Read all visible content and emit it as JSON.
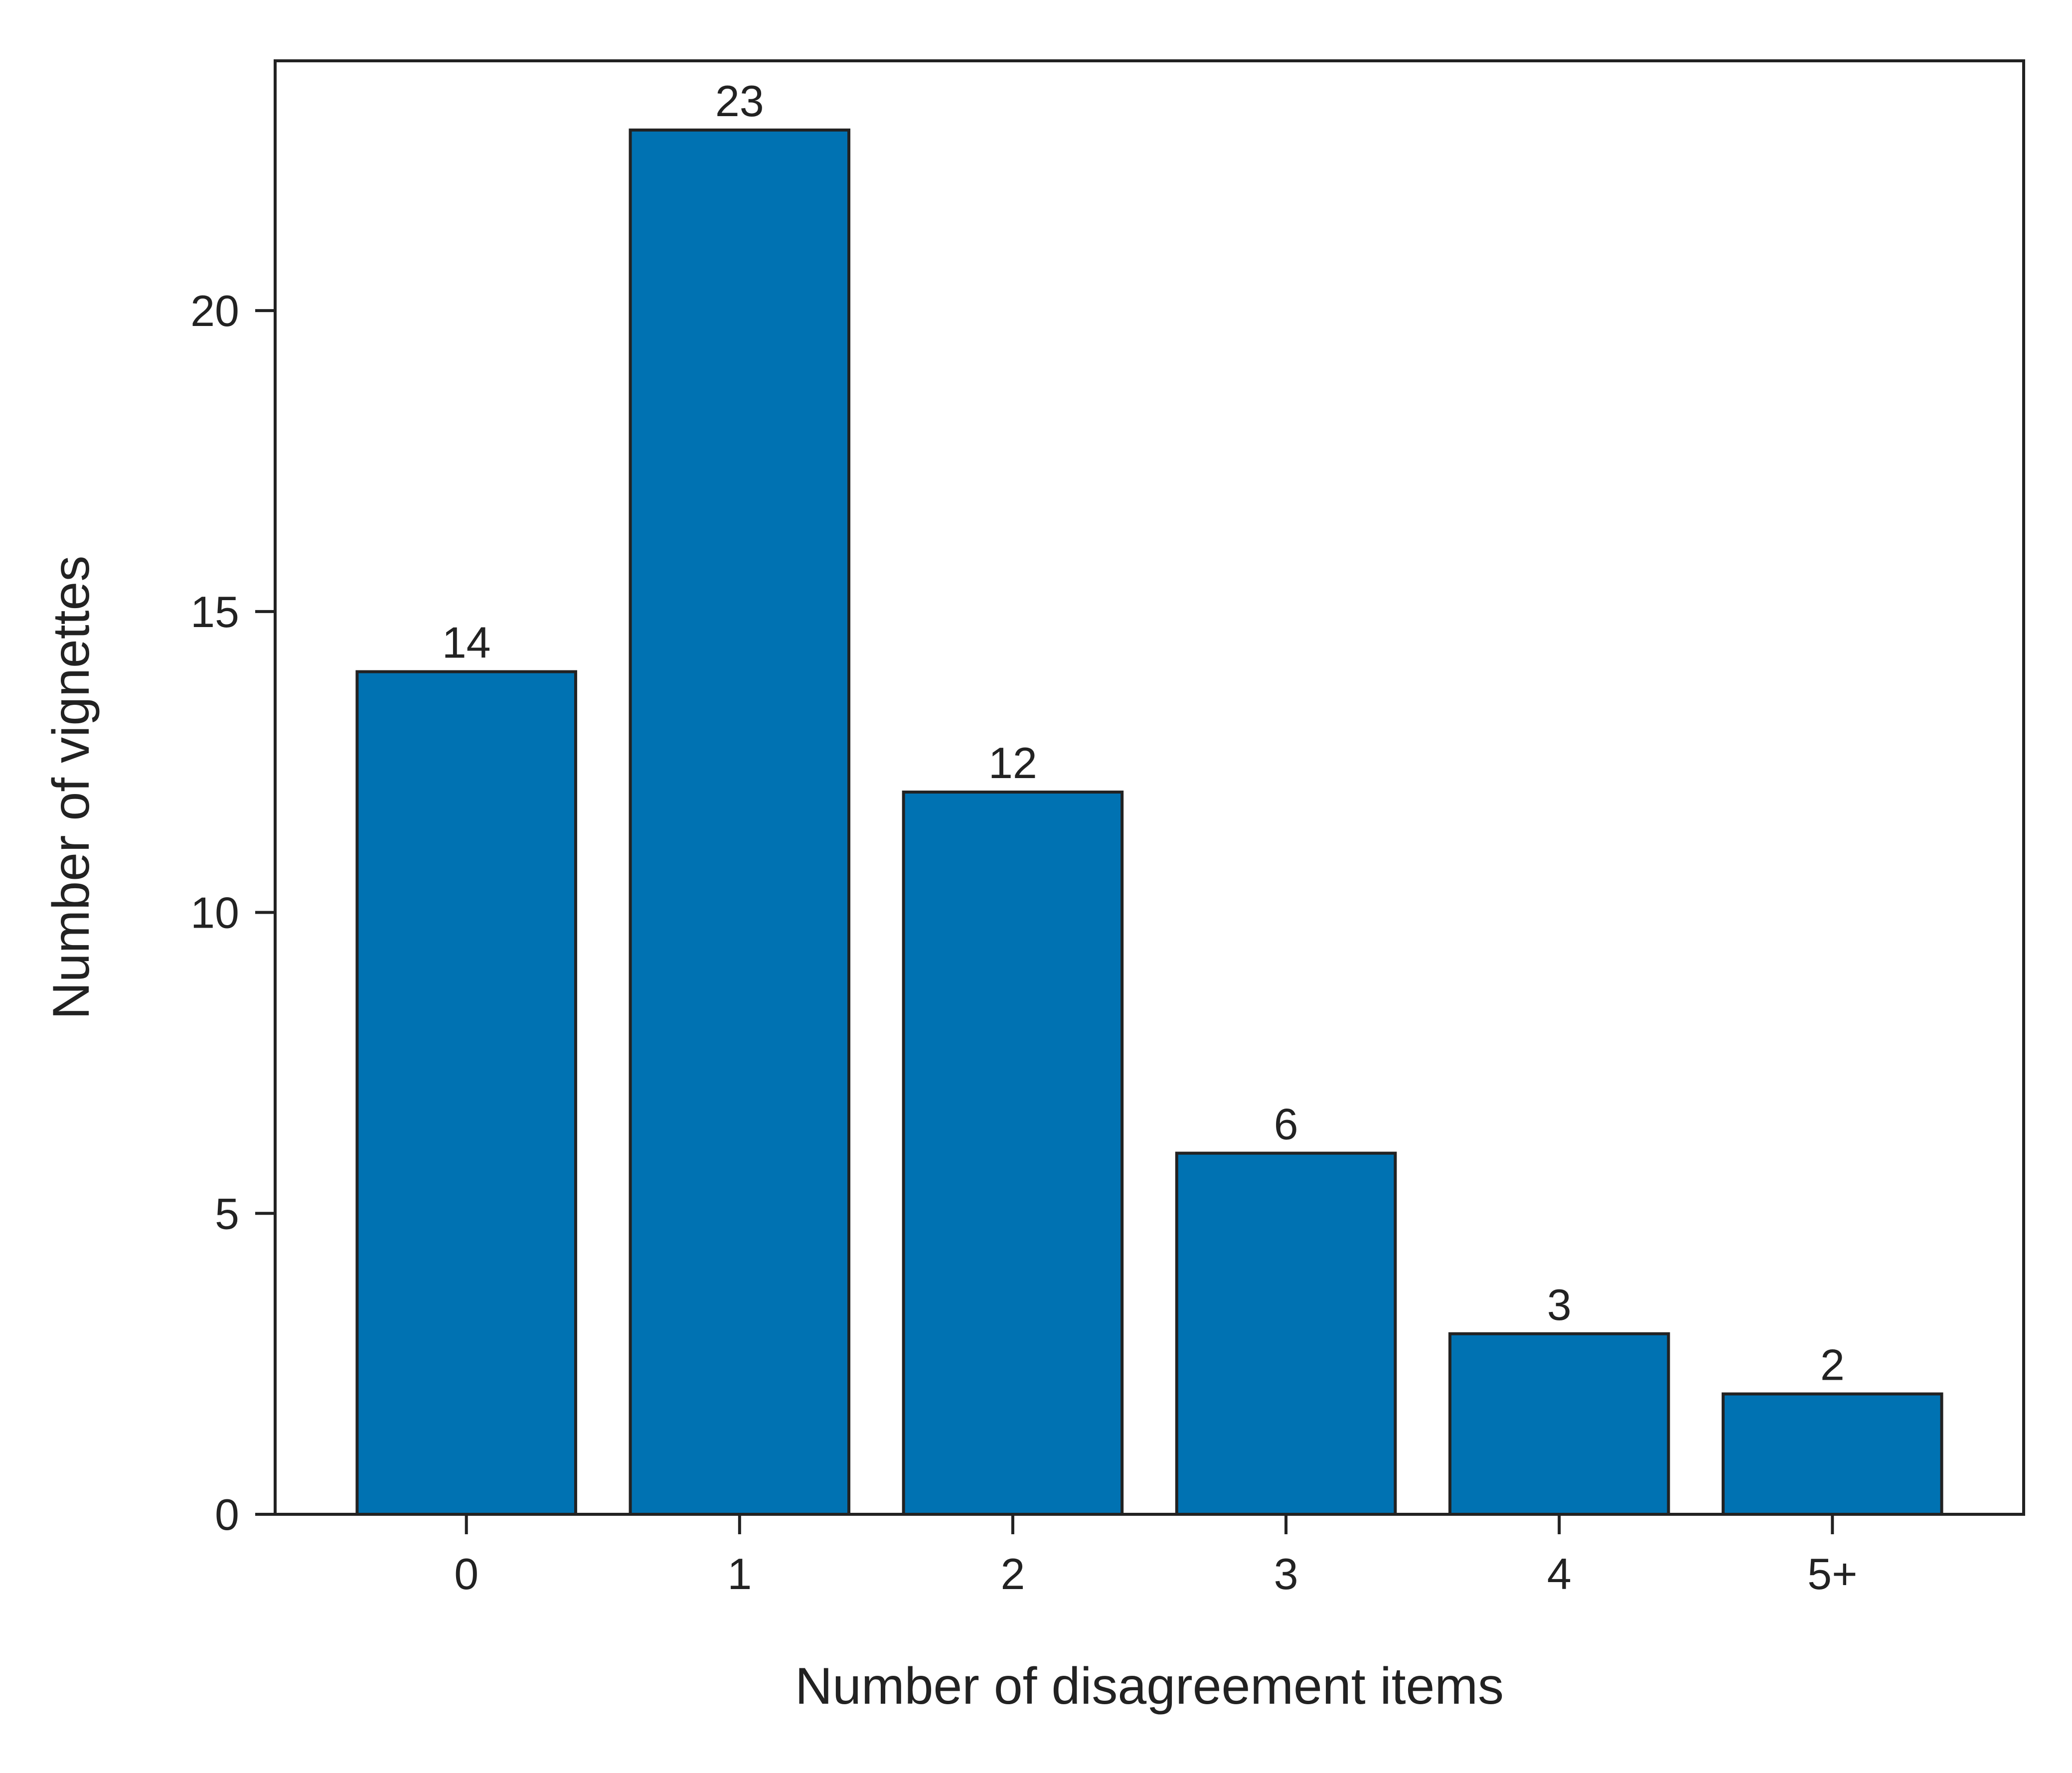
{
  "chart_data": {
    "type": "bar",
    "categories": [
      "0",
      "1",
      "2",
      "3",
      "4",
      "5+"
    ],
    "values": [
      14,
      23,
      12,
      6,
      3,
      2
    ],
    "data_labels": [
      "14",
      "23",
      "12",
      "6",
      "3",
      "2"
    ],
    "title": "",
    "xlabel": "Number of disagreement items",
    "ylabel": "Number of vignettes",
    "ylim": [
      0,
      24.15
    ],
    "y_ticks": [
      0,
      5,
      10,
      15,
      20
    ],
    "y_tick_labels": [
      "0",
      "5",
      "10",
      "15",
      "20"
    ],
    "grid": false,
    "legend": "none",
    "colors": {
      "bar_fill": "#0072b2",
      "bar_edge": "#222222",
      "axis": "#222222",
      "text": "#222222",
      "background": "#ffffff"
    }
  }
}
